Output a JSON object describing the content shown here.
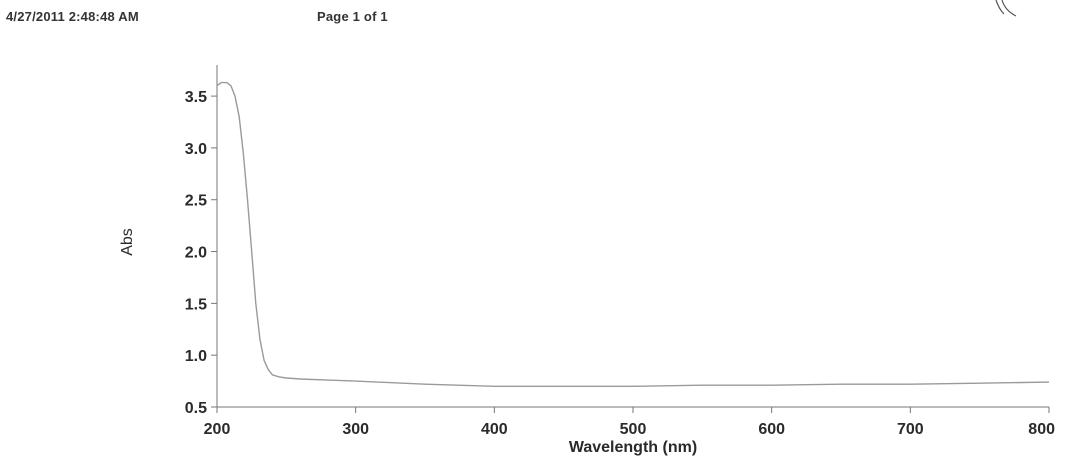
{
  "header": {
    "timestamp": "4/27/2011 2:48:48 AM",
    "page": "Page 1 of 1"
  },
  "chart_data": {
    "type": "line",
    "xlabel": "Wavelength (nm)",
    "ylabel": "Abs",
    "xlim": [
      200,
      800
    ],
    "ylim": [
      0.5,
      3.8
    ],
    "xticks": [
      200,
      300,
      400,
      500,
      600,
      700,
      800
    ],
    "yticks": [
      0.5,
      1.0,
      1.5,
      2.0,
      2.5,
      3.0,
      3.5
    ],
    "xtick_labels": [
      "200",
      "300",
      "400",
      "500",
      "600",
      "700",
      "800"
    ],
    "ytick_labels": [
      "0.5",
      "1.0",
      "1.5",
      "2.0",
      "2.5",
      "3.0",
      "3.5"
    ],
    "grid": false,
    "line_color": "#9a9a9a",
    "series": [
      {
        "x": [
          200,
          203,
          207,
          210,
          213,
          216,
          219,
          222,
          225,
          228,
          231,
          234,
          237,
          240,
          245,
          250,
          260,
          280,
          300,
          350,
          400,
          450,
          500,
          550,
          600,
          650,
          700,
          750,
          800
        ],
        "y": [
          3.6,
          3.63,
          3.63,
          3.6,
          3.5,
          3.3,
          2.95,
          2.5,
          2.0,
          1.5,
          1.15,
          0.95,
          0.86,
          0.81,
          0.79,
          0.78,
          0.77,
          0.76,
          0.75,
          0.72,
          0.7,
          0.7,
          0.7,
          0.71,
          0.71,
          0.72,
          0.72,
          0.73,
          0.74
        ]
      }
    ]
  }
}
